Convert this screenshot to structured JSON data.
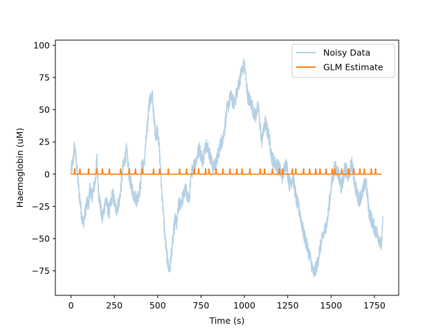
{
  "chart_data": {
    "type": "line",
    "title": "",
    "xlabel": "Time (s)",
    "ylabel": "Haemoglobin (uM)",
    "xlim": [
      -90,
      1890
    ],
    "ylim": [
      -94,
      104
    ],
    "xticks": [
      0,
      250,
      500,
      750,
      1000,
      1250,
      1500,
      1750
    ],
    "yticks": [
      -75,
      -50,
      -25,
      0,
      25,
      50,
      75,
      100
    ],
    "xtick_labels": [
      "0",
      "250",
      "500",
      "750",
      "1000",
      "1250",
      "1500",
      "1750"
    ],
    "ytick_labels": [
      "−75",
      "−50",
      "−25",
      "0",
      "25",
      "50",
      "75",
      "100"
    ],
    "grid": false,
    "legend_position": "top-right",
    "series": [
      {
        "name": "Noisy Data",
        "color": "#b4d0e4",
        "noise_amplitude": 6,
        "x": [
          0,
          10,
          20,
          30,
          40,
          50,
          60,
          70,
          80,
          90,
          100,
          110,
          120,
          140,
          150,
          160,
          170,
          180,
          200,
          220,
          240,
          260,
          280,
          300,
          320,
          340,
          360,
          380,
          400,
          410,
          420,
          430,
          440,
          450,
          460,
          470,
          480,
          490,
          500,
          510,
          520,
          530,
          540,
          550,
          560,
          570,
          580,
          590,
          600,
          610,
          620,
          640,
          660,
          680,
          700,
          720,
          740,
          760,
          780,
          800,
          820,
          840,
          860,
          880,
          900,
          920,
          940,
          960,
          980,
          1000,
          1020,
          1040,
          1060,
          1080,
          1100,
          1120,
          1140,
          1160,
          1180,
          1200,
          1220,
          1240,
          1260,
          1280,
          1300,
          1320,
          1340,
          1360,
          1380,
          1400,
          1420,
          1440,
          1460,
          1480,
          1500,
          1520,
          1540,
          1560,
          1580,
          1600,
          1620,
          1640,
          1660,
          1680,
          1700,
          1720,
          1740,
          1760,
          1780,
          1790,
          1800
        ],
        "y": [
          2,
          8,
          22,
          10,
          -5,
          -18,
          -30,
          -38,
          -32,
          -22,
          -25,
          -10,
          -18,
          -5,
          12,
          -15,
          -25,
          -35,
          -20,
          -30,
          -15,
          -28,
          -20,
          5,
          18,
          -5,
          -15,
          -20,
          -10,
          10,
          5,
          22,
          35,
          55,
          58,
          60,
          40,
          30,
          35,
          18,
          -5,
          -25,
          -45,
          -60,
          -70,
          -75,
          -60,
          -48,
          -35,
          -40,
          -25,
          -20,
          -12,
          -20,
          5,
          10,
          20,
          10,
          25,
          15,
          5,
          10,
          22,
          30,
          50,
          60,
          55,
          65,
          78,
          85,
          60,
          55,
          45,
          52,
          25,
          40,
          30,
          12,
          8,
          5,
          -2,
          10,
          -8,
          -2,
          -20,
          -30,
          -45,
          -55,
          -65,
          -78,
          -70,
          -55,
          -45,
          -35,
          -10,
          5,
          2,
          -10,
          5,
          -2,
          8,
          -10,
          -20,
          -15,
          -5,
          -30,
          -38,
          -45,
          -50,
          -55,
          -35
        ]
      },
      {
        "name": "GLM Estimate",
        "color": "#ff7f0e",
        "baseline": 0,
        "peak_height": 4.2,
        "peak_times": [
          20,
          50,
          100,
          145,
          180,
          220,
          285,
          335,
          370,
          410,
          475,
          510,
          560,
          625,
          665,
          710,
          735,
          775,
          795,
          835,
          875,
          915,
          955,
          985,
          1030,
          1090,
          1115,
          1160,
          1200,
          1220,
          1275,
          1295,
          1340,
          1375,
          1410,
          1435,
          1470,
          1505,
          1520,
          1560,
          1600,
          1630,
          1665,
          1690,
          1730,
          1755
        ],
        "x_start": 0,
        "x_end": 1790
      }
    ]
  }
}
